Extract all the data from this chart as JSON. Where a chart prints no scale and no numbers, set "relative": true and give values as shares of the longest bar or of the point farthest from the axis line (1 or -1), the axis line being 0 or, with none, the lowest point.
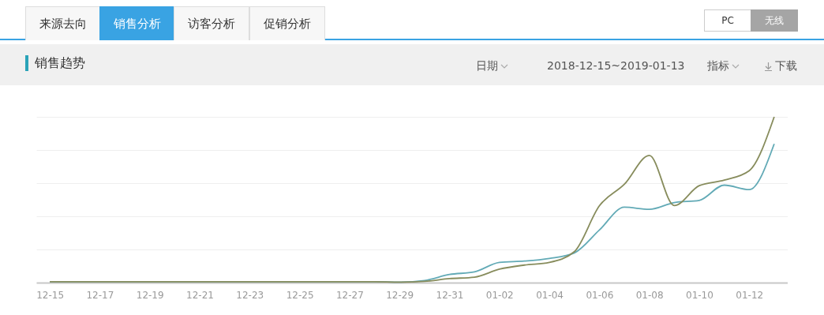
{
  "chart_data": {
    "type": "line",
    "title": "销售趋势",
    "relative": true,
    "grid": "y",
    "annotations": [
      "来源去向",
      "销售分析",
      "访客分析",
      "促销分析",
      "PC",
      "无线",
      "日期",
      "2018-12-15~2019-01-13",
      "指标",
      "下载"
    ],
    "categories": [
      "12-15",
      null,
      "12-17",
      null,
      "12-19",
      null,
      "12-21",
      null,
      "12-23",
      null,
      "12-25",
      null,
      "12-27",
      null,
      "12-29",
      null,
      "12-31",
      null,
      "01-02",
      null,
      "01-04",
      null,
      "01-06",
      null,
      "01-08",
      null,
      "01-10",
      null,
      "01-12",
      null
    ],
    "series": [
      {
        "color": "#62aab6",
        "values": [
          0.005,
          0.005,
          0.005,
          0.005,
          0.005,
          0.005,
          0.005,
          0.005,
          0.005,
          0.005,
          0.005,
          0.005,
          0.005,
          0.005,
          0.003,
          0.013,
          0.049,
          0.065,
          0.122,
          0.13,
          0.146,
          0.179,
          0.317,
          0.455,
          0.442,
          0.483,
          0.496,
          0.588,
          0.561,
          0.837
        ]
      },
      {
        "color": "#878c5c",
        "values": [
          0.005,
          0.005,
          0.005,
          0.005,
          0.005,
          0.005,
          0.005,
          0.005,
          0.005,
          0.005,
          0.005,
          0.005,
          0.005,
          0.005,
          0.003,
          0.008,
          0.024,
          0.033,
          0.081,
          0.106,
          0.122,
          0.187,
          0.463,
          0.593,
          0.767,
          0.465,
          0.585,
          0.618,
          0.675,
          1
        ]
      }
    ]
  }
}
